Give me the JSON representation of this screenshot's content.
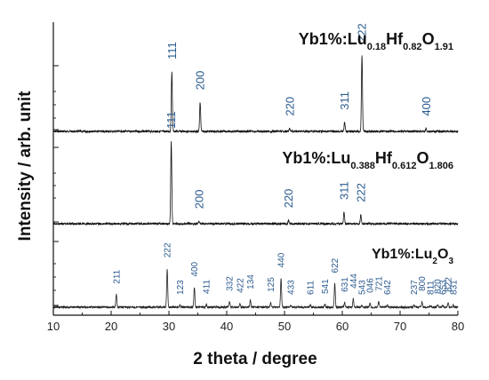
{
  "chart_data": {
    "type": "line",
    "xlabel": "2 theta / degree",
    "ylabel": "Intensity / arb. unit",
    "xlim": [
      10,
      80
    ],
    "x_ticks": [
      "10",
      "20",
      "30",
      "40",
      "50",
      "60",
      "70",
      "80"
    ],
    "panels": [
      {
        "title_parts": [
          {
            "t": "Yb1%:Lu",
            "s": "n"
          },
          {
            "t": "0.18",
            "s": "sub"
          },
          {
            "t": "Hf",
            "s": "n"
          },
          {
            "t": "0.82",
            "s": "sub"
          },
          {
            "t": "O",
            "s": "n"
          },
          {
            "t": "1.91",
            "s": "sub"
          }
        ],
        "title_text": "Yb1%:Lu0.18Hf0.82O1.91",
        "peaks": [
          {
            "x": 30.5,
            "h": 0.78,
            "label": "111"
          },
          {
            "x": 35.4,
            "h": 0.38,
            "label": "200"
          },
          {
            "x": 50.9,
            "h": 0.04,
            "label": "220"
          },
          {
            "x": 60.4,
            "h": 0.12,
            "label": "311"
          },
          {
            "x": 63.4,
            "h": 1.0,
            "label": "222"
          },
          {
            "x": 74.5,
            "h": 0.04,
            "label": "400"
          }
        ]
      },
      {
        "title_parts": [
          {
            "t": "Yb1%:Lu",
            "s": "n"
          },
          {
            "t": "0.388",
            "s": "sub"
          },
          {
            "t": "Hf",
            "s": "n"
          },
          {
            "t": "0.612",
            "s": "sub"
          },
          {
            "t": "O",
            "s": "n"
          },
          {
            "t": "1.806",
            "s": "sub"
          }
        ],
        "title_text": "Yb1%:Lu0.388Hf0.612O1.806",
        "peaks": [
          {
            "x": 30.4,
            "h": 1.0,
            "label": "111"
          },
          {
            "x": 35.2,
            "h": 0.03,
            "label": "200"
          },
          {
            "x": 50.7,
            "h": 0.04,
            "label": "220"
          },
          {
            "x": 60.3,
            "h": 0.14,
            "label": "311"
          },
          {
            "x": 63.2,
            "h": 0.11,
            "label": "222"
          }
        ]
      },
      {
        "title_parts": [
          {
            "t": "Yb1%:Lu",
            "s": "n"
          },
          {
            "t": "2",
            "s": "sub"
          },
          {
            "t": "O",
            "s": "n"
          },
          {
            "t": "3",
            "s": "sub"
          }
        ],
        "title_text": "Yb1%:Lu2O3",
        "peaks": [
          {
            "x": 20.9,
            "h": 0.14,
            "label": "211"
          },
          {
            "x": 29.7,
            "h": 0.43,
            "label": "222"
          },
          {
            "x": 31.9,
            "h": 0.02,
            "label": "123"
          },
          {
            "x": 34.4,
            "h": 0.22,
            "label": "400"
          },
          {
            "x": 36.5,
            "h": 0.03,
            "label": "411"
          },
          {
            "x": 40.5,
            "h": 0.06,
            "label": "332"
          },
          {
            "x": 42.3,
            "h": 0.04,
            "label": "422"
          },
          {
            "x": 44.1,
            "h": 0.08,
            "label": "134"
          },
          {
            "x": 47.6,
            "h": 0.05,
            "label": "125"
          },
          {
            "x": 49.4,
            "h": 0.32,
            "label": "440"
          },
          {
            "x": 51.1,
            "h": 0.02,
            "label": "433"
          },
          {
            "x": 54.5,
            "h": 0.02,
            "label": "611"
          },
          {
            "x": 57.0,
            "h": 0.03,
            "label": "541"
          },
          {
            "x": 58.7,
            "h": 0.26,
            "label": "622"
          },
          {
            "x": 60.4,
            "h": 0.05,
            "label": "631"
          },
          {
            "x": 61.9,
            "h": 0.09,
            "label": "444"
          },
          {
            "x": 63.4,
            "h": 0.02,
            "label": "543"
          },
          {
            "x": 64.8,
            "h": 0.04,
            "label": "046"
          },
          {
            "x": 66.3,
            "h": 0.06,
            "label": "721"
          },
          {
            "x": 67.8,
            "h": 0.02,
            "label": "642"
          },
          {
            "x": 72.4,
            "h": 0.02,
            "label": "237"
          },
          {
            "x": 73.8,
            "h": 0.06,
            "label": "800"
          },
          {
            "x": 75.2,
            "h": 0.02,
            "label": "811"
          },
          {
            "x": 76.5,
            "h": 0.03,
            "label": "820"
          },
          {
            "x": 77.4,
            "h": 0.02,
            "label": "653"
          },
          {
            "x": 78.3,
            "h": 0.05,
            "label": "822"
          },
          {
            "x": 79.2,
            "h": 0.02,
            "label": "831"
          }
        ]
      }
    ]
  }
}
